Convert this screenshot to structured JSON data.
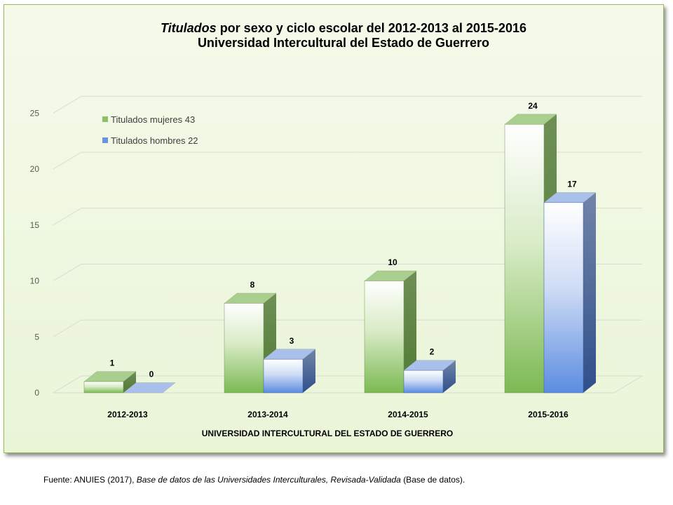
{
  "title": {
    "italic_part": "Titulados",
    "rest_line1": " por sexo y ciclo escolar del 2012-2013 al 2015-2016",
    "line2": "Universidad Intercultural del Estado de Guerrero"
  },
  "source": {
    "prefix": "Fuente: ANUIES (2017), ",
    "italic": "Base de datos de las Universidades  Interculturales, Revisada-Validada",
    "suffix": " (Base de datos)."
  },
  "chart_data": {
    "type": "bar",
    "categories": [
      "2012-2013",
      "2013-2014",
      "2014-2015",
      "2015-2016"
    ],
    "series": [
      {
        "name": "Titulados mujeres 43",
        "values": [
          1,
          8,
          10,
          24
        ],
        "color": "#70ad47"
      },
      {
        "name": "Titulados hombres 22",
        "values": [
          0,
          3,
          2,
          17
        ],
        "color": "#4472c4"
      }
    ],
    "xlabel": "UNIVERSIDAD INTERCULTURAL DEL ESTADO DE GUERRERO",
    "ylabel": "",
    "ylim": [
      0,
      25
    ],
    "yticks": [
      0,
      5,
      10,
      15,
      20,
      25
    ],
    "grid": true,
    "legend": "top-left",
    "style": "3d-clustered"
  }
}
